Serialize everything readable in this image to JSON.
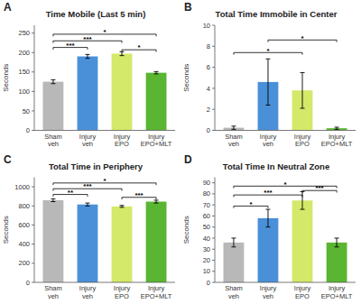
{
  "chart_data": [
    {
      "type": "bar",
      "panel_label": "A",
      "title": "Time Mobile (Last 5 min)",
      "ylabel": "Seconds",
      "categories": [
        "Sham\nveh",
        "Injury\nveh",
        "Injury\nEPO",
        "Injury\nEPO+MLT"
      ],
      "values": [
        125,
        190,
        197,
        148
      ],
      "errors": [
        5,
        5,
        5,
        3
      ],
      "colors": [
        "#b8b8b8",
        "#4a90d9",
        "#d4e86a",
        "#5ab532"
      ],
      "ylim": [
        0,
        270
      ],
      "yticks": [
        0,
        50,
        100,
        150,
        200,
        250
      ],
      "annotations": [
        {
          "x1": 0,
          "x2": 1,
          "y": 213,
          "text": "***"
        },
        {
          "x1": 0,
          "x2": 2,
          "y": 230,
          "text": "***"
        },
        {
          "x1": 0,
          "x2": 3,
          "y": 247,
          "text": "*"
        },
        {
          "x1": 2,
          "x2": 3,
          "y": 207,
          "text": "*"
        }
      ]
    },
    {
      "type": "bar",
      "panel_label": "B",
      "title": "Total Time Immobile in Center",
      "ylabel": "Seconds",
      "categories": [
        "Sham\nveh",
        "Injury\nveh",
        "Injury\nEPO",
        "Injury\nEPO+MLT"
      ],
      "values": [
        0.25,
        4.6,
        3.8,
        0.2
      ],
      "errors": [
        0.15,
        2.2,
        1.7,
        0.1
      ],
      "colors": [
        "#b8b8b8",
        "#4a90d9",
        "#d4e86a",
        "#5ab532"
      ],
      "ylim": [
        0,
        10
      ],
      "yticks": [
        0,
        2,
        4,
        6,
        8,
        10
      ],
      "annotations": [
        {
          "x1": 0,
          "x2": 2,
          "y": 7.4,
          "text": "*"
        },
        {
          "x1": 1,
          "x2": 3,
          "y": 8.6,
          "text": "*"
        }
      ]
    },
    {
      "type": "bar",
      "panel_label": "C",
      "title": "Total Time in Periphery",
      "ylabel": "Seconds",
      "categories": [
        "Sham\nveh",
        "Injury\nveh",
        "Injury\nEPO",
        "Injury\nEPO+MLT"
      ],
      "values": [
        860,
        815,
        795,
        845
      ],
      "errors": [
        15,
        15,
        10,
        15
      ],
      "colors": [
        "#b8b8b8",
        "#4a90d9",
        "#d4e86a",
        "#5ab532"
      ],
      "ylim": [
        0,
        1100
      ],
      "yticks": [
        0,
        200,
        400,
        600,
        800,
        1000
      ],
      "annotations": [
        {
          "x1": 0,
          "x2": 1,
          "y": 920,
          "text": "**"
        },
        {
          "x1": 0,
          "x2": 2,
          "y": 980,
          "text": "***"
        },
        {
          "x1": 0,
          "x2": 3,
          "y": 1040,
          "text": "*"
        },
        {
          "x1": 2,
          "x2": 3,
          "y": 890,
          "text": "***"
        }
      ]
    },
    {
      "type": "bar",
      "panel_label": "D",
      "title": "Total Time In Neutral Zone",
      "ylabel": "Seconds",
      "categories": [
        "Sham\nveh",
        "Injury\nveh",
        "Injury\nEPO",
        "Injury\nEPO+MLT"
      ],
      "values": [
        36,
        58,
        74,
        36
      ],
      "errors": [
        4,
        8,
        8,
        4
      ],
      "colors": [
        "#b8b8b8",
        "#4a90d9",
        "#d4e86a",
        "#5ab532"
      ],
      "ylim": [
        0,
        95
      ],
      "yticks": [
        0,
        10,
        20,
        30,
        40,
        50,
        60,
        70,
        80,
        90
      ],
      "annotations": [
        {
          "x1": 0,
          "x2": 1,
          "y": 69,
          "text": "*"
        },
        {
          "x1": 0,
          "x2": 2,
          "y": 79,
          "text": "***"
        },
        {
          "x1": 0,
          "x2": 3,
          "y": 87,
          "text": "*"
        },
        {
          "x1": 2,
          "x2": 3,
          "y": 83,
          "text": "***"
        }
      ]
    }
  ]
}
